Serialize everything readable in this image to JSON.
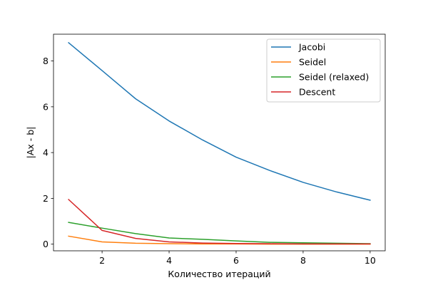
{
  "chart_data": {
    "type": "line",
    "title": "",
    "xlabel": "Количество итераций",
    "ylabel": "|Ax - b|",
    "xlim": [
      0.55,
      10.45
    ],
    "ylim": [
      -0.29,
      9.17
    ],
    "xticks": [
      2,
      4,
      6,
      8,
      10
    ],
    "yticks": [
      0,
      2,
      4,
      6,
      8
    ],
    "x": [
      1,
      2,
      3,
      4,
      5,
      6,
      7,
      8,
      9,
      10
    ],
    "grid": false,
    "legend_position": "top-right",
    "series": [
      {
        "name": "Jacobi",
        "color": "#1f77b4",
        "values": [
          8.8,
          7.58,
          6.35,
          5.38,
          4.55,
          3.8,
          3.22,
          2.7,
          2.28,
          1.92
        ]
      },
      {
        "name": "Seidel",
        "color": "#ff7f0e",
        "values": [
          0.35,
          0.1,
          0.04,
          0.02,
          0.01,
          0.01,
          0.0,
          0.0,
          0.0,
          0.0
        ]
      },
      {
        "name": "Seidel (relaxed)",
        "color": "#2ca02c",
        "values": [
          0.95,
          0.7,
          0.46,
          0.27,
          0.21,
          0.14,
          0.08,
          0.06,
          0.04,
          0.02
        ]
      },
      {
        "name": "Descent",
        "color": "#d62728",
        "values": [
          1.95,
          0.6,
          0.25,
          0.1,
          0.05,
          0.03,
          0.02,
          0.01,
          0.01,
          0.01
        ]
      }
    ]
  }
}
